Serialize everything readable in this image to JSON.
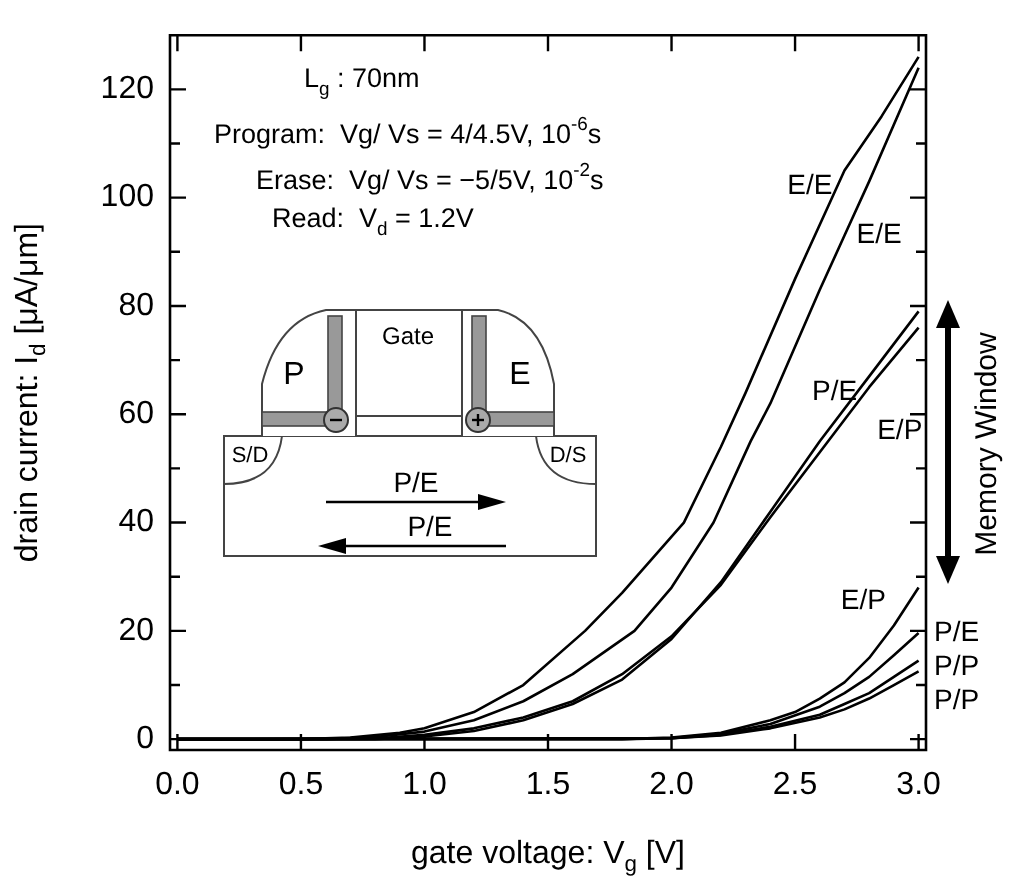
{
  "chart_data": {
    "type": "line",
    "xlabel": "gate voltage: V$_{g}$ [V]",
    "ylabel": "drain current: I$_{d}$ [μA/μm]",
    "xlim": [
      -0.03,
      3.03
    ],
    "ylim": [
      -2,
      130
    ],
    "xticks": [
      {
        "value": 0,
        "label": "0.0"
      },
      {
        "value": 0.5,
        "label": "0.5"
      },
      {
        "value": 1,
        "label": "1.0"
      },
      {
        "value": 1.5,
        "label": "1.5"
      },
      {
        "value": 2,
        "label": "2.0"
      },
      {
        "value": 2.5,
        "label": "2.5"
      },
      {
        "value": 3,
        "label": "3.0"
      }
    ],
    "yticks": [
      0,
      {
        "value": 10,
        "label": null
      },
      20,
      {
        "value": 30,
        "label": null
      },
      40,
      {
        "value": 50,
        "label": null
      },
      60,
      {
        "value": 70,
        "label": null
      },
      80,
      {
        "value": 90,
        "label": null
      },
      100,
      {
        "value": 110,
        "label": null
      },
      120
    ],
    "grid": false,
    "legend": false,
    "marker": "none",
    "line_style": "solid",
    "series": [
      {
        "color": "#000000",
        "x": [
          0,
          0.5,
          0.7,
          0.9,
          1.0,
          1.2,
          1.4,
          1.65,
          1.8,
          2.05,
          2.2,
          2.3,
          2.5,
          2.7,
          2.85,
          3.0
        ],
        "values": [
          0,
          0,
          0.3,
          1.2,
          2,
          5,
          10,
          20,
          27,
          40,
          54,
          64,
          85,
          105,
          115,
          126
        ]
      },
      {
        "color": "#000000",
        "x": [
          0,
          0.6,
          0.8,
          1.0,
          1.2,
          1.4,
          1.6,
          1.85,
          2.0,
          2.17,
          2.32,
          2.4,
          2.6,
          2.7,
          2.8,
          3.0
        ],
        "values": [
          0,
          0,
          0.4,
          1.4,
          3.5,
          7,
          12,
          20,
          28,
          40,
          55,
          62,
          83,
          93,
          103,
          124
        ]
      },
      {
        "color": "#000000",
        "x": [
          0,
          0.8,
          1.0,
          1.2,
          1.4,
          1.6,
          1.8,
          2.0,
          2.2,
          2.4,
          2.6,
          2.8,
          3.0
        ],
        "values": [
          0,
          0,
          0.5,
          1.5,
          3.5,
          6.5,
          11,
          18.5,
          29,
          42,
          55,
          67,
          79
        ]
      },
      {
        "color": "#000000",
        "x": [
          0,
          0.8,
          1.0,
          1.2,
          1.4,
          1.6,
          1.8,
          2.0,
          2.2,
          2.4,
          2.6,
          2.8,
          3.0
        ],
        "values": [
          0,
          0.1,
          0.8,
          2,
          4,
          7,
          12,
          19,
          28.5,
          41,
          53,
          65,
          76
        ]
      },
      {
        "color": "#000000",
        "x": [
          0,
          1.8,
          2.0,
          2.2,
          2.4,
          2.5,
          2.6,
          2.7,
          2.8,
          2.9,
          3.0
        ],
        "values": [
          0,
          0,
          0.3,
          1.2,
          3.5,
          5,
          7.5,
          10.5,
          15,
          21,
          28
        ]
      },
      {
        "color": "#000000",
        "x": [
          0,
          1.8,
          2.0,
          2.2,
          2.4,
          2.6,
          2.7,
          2.8,
          2.9,
          3.0
        ],
        "values": [
          0,
          0,
          0.2,
          1,
          2.8,
          6,
          8.5,
          11.5,
          15.5,
          19.6
        ]
      },
      {
        "color": "#000000",
        "x": [
          0,
          2.0,
          2.2,
          2.4,
          2.6,
          2.7,
          2.8,
          2.9,
          3.0
        ],
        "values": [
          0,
          0.2,
          0.8,
          2.3,
          4.5,
          6.5,
          8.5,
          11.5,
          14.5
        ]
      },
      {
        "color": "#000000",
        "x": [
          0,
          2.0,
          2.2,
          2.4,
          2.6,
          2.7,
          2.8,
          2.9,
          3.0
        ],
        "values": [
          0,
          0.2,
          0.7,
          2,
          4,
          5.5,
          7.5,
          10,
          12.5
        ]
      }
    ],
    "annotations": [
      "L$_{g}$ : 70nm",
      "Program:  Vg/ Vs = 4/4.5V, 10$^{-6}$s",
      "Erase:  Vg/ Vs = −5/5V, 10$^{-2}$s",
      "Read:  V$_{d}$ = 1.2V",
      "Memory Window",
      "Gate",
      "P",
      "E",
      "S/D",
      "D/S",
      "P/E",
      "P/E",
      {
        "text": "E/E",
        "x": 2.7,
        "y": 105
      },
      {
        "text": "E/E",
        "x": 2.7,
        "y": 93
      },
      {
        "text": "P/E",
        "x": 2.8,
        "y": 67
      },
      {
        "text": "E/P",
        "x": 2.8,
        "y": 65
      },
      {
        "text": "E/P",
        "x": 2.9,
        "y": 21
      },
      {
        "text": "P/E",
        "x": 3.0,
        "y": 19.6
      },
      {
        "text": "P/P",
        "x": 3.0,
        "y": 14.5
      },
      {
        "text": "P/P",
        "x": 3.0,
        "y": 12.5
      }
    ]
  }
}
